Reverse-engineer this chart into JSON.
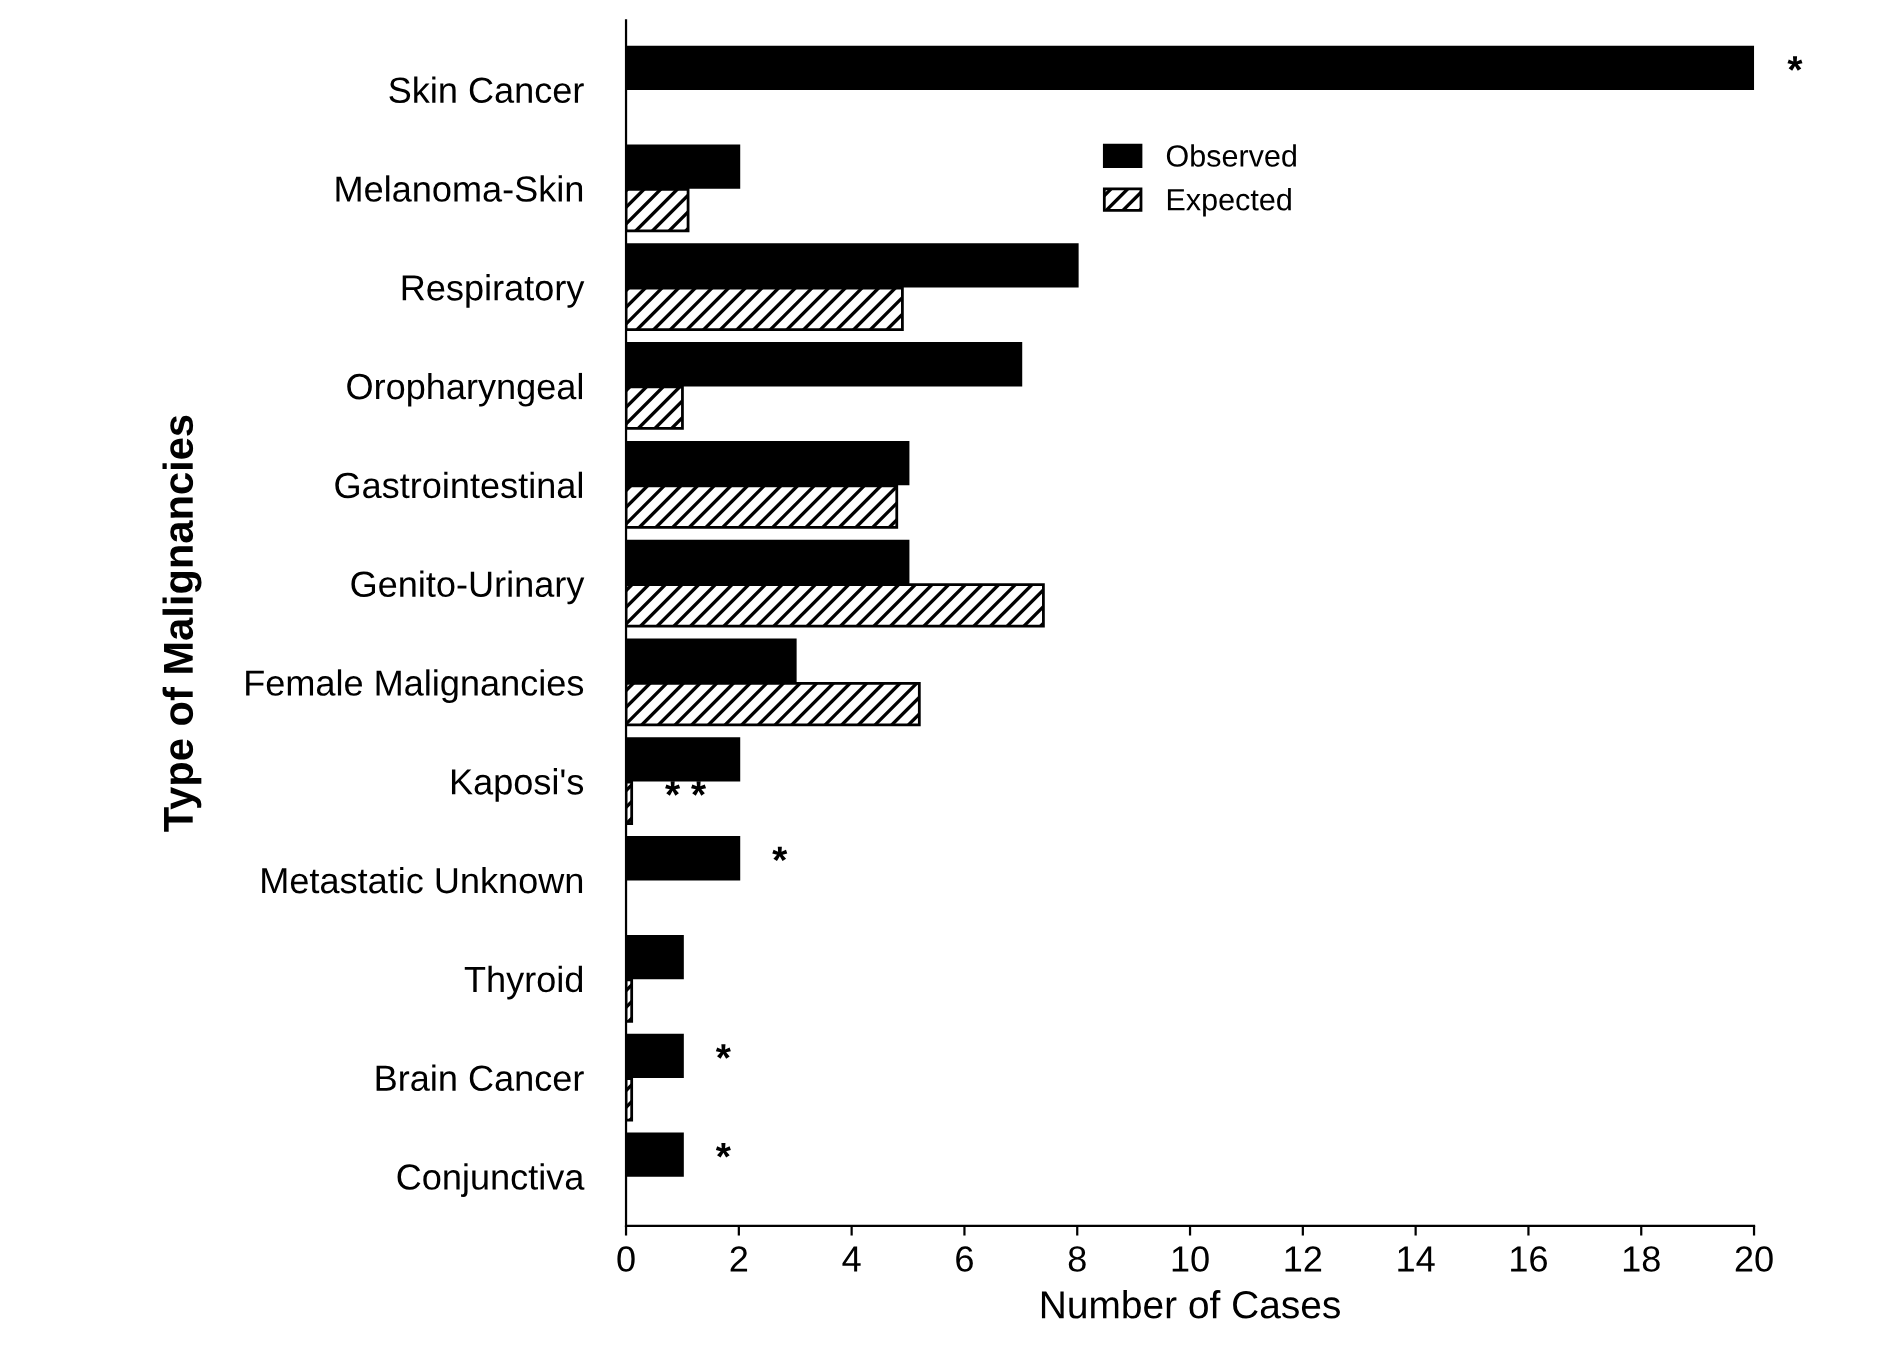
{
  "chart_data": {
    "type": "bar",
    "orientation": "horizontal",
    "xlabel": "Number of Cases",
    "ylabel": "Type of Malignancies",
    "categories": [
      "Skin Cancer",
      "Melanoma-Skin",
      "Respiratory",
      "Oropharyngeal",
      "Gastrointestinal",
      "Genito-Urinary",
      "Female Malignancies",
      "Kaposi's",
      "Metastatic Unknown",
      "Thyroid",
      "Brain Cancer",
      "Conjunctiva"
    ],
    "series": [
      {
        "name": "Observed",
        "color": "#000000",
        "values": [
          20,
          2,
          8,
          7,
          5,
          5,
          3,
          2,
          2,
          1,
          1,
          1
        ]
      },
      {
        "name": "Expected",
        "color": "#000000",
        "values": [
          null,
          1.1,
          4.9,
          1,
          4.8,
          7.4,
          5.2,
          0.1,
          null,
          0.1,
          0.1,
          null
        ]
      }
    ],
    "xlim": [
      0,
      20
    ],
    "xticks": [
      0,
      2,
      4,
      6,
      8,
      10,
      12,
      14,
      16,
      18,
      20
    ],
    "grid": false,
    "legend": "top right",
    "annotations": [
      {
        "text": "*",
        "x": 20,
        "y": "Skin Cancer"
      },
      {
        "text": "* *",
        "x": 0.1,
        "y": "Kaposi's"
      },
      {
        "text": "*",
        "x": 2,
        "y": "Metastatic Unknown"
      },
      {
        "text": "*",
        "x": 1,
        "y": "Brain Cancer"
      },
      {
        "text": "*",
        "x": 1,
        "y": "Conjunctiva"
      }
    ]
  }
}
